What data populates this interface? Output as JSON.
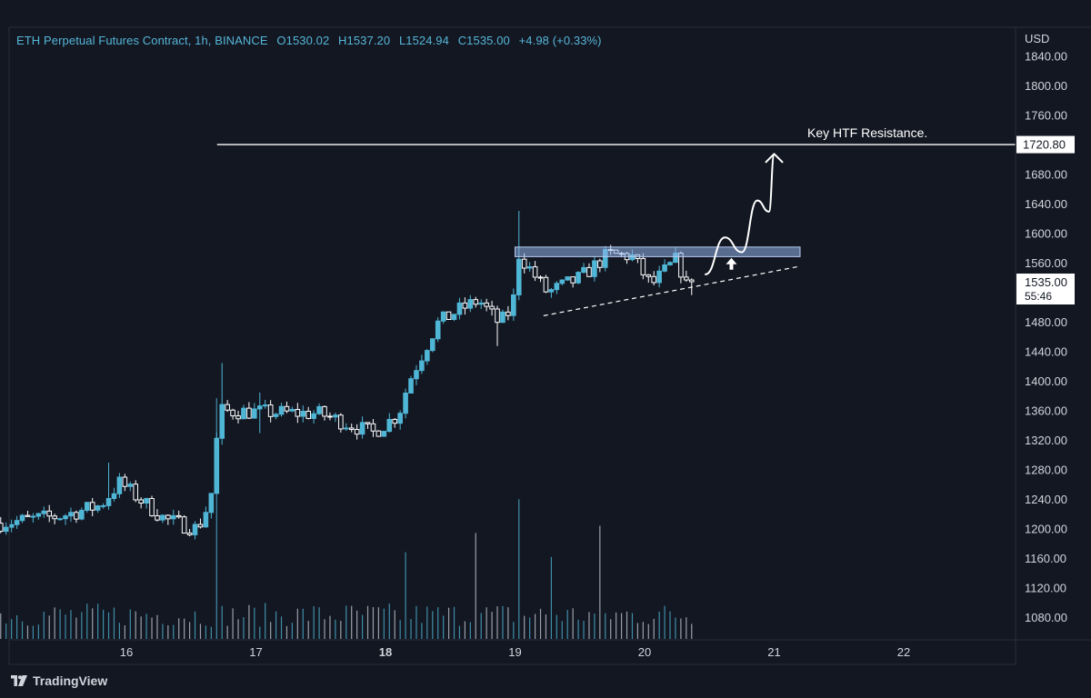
{
  "header": {
    "symbol": "ETH Perpetual Futures Contract, 1h, BINANCE",
    "open": "O1530.02",
    "high": "H1537.20",
    "low": "L1524.94",
    "close": "C1535.00",
    "change": "+4.98 (+0.33%)"
  },
  "branding": {
    "name": "TradingView"
  },
  "annotations": {
    "resistance_label": "Key HTF Resistance.",
    "resistance_price": "1720.80",
    "last_price": "1535.00",
    "countdown": "55:46"
  },
  "colors": {
    "background": "#131722",
    "bull": "#4fb6d6",
    "bear": "#ffffff",
    "zone": "#8fb3ea",
    "header": "#56b6d8"
  },
  "chart_data": {
    "type": "candlestick",
    "symbol": "ETH Perpetual Futures Contract",
    "interval": "1h",
    "exchange": "BINANCE",
    "y_axis": {
      "unit": "USD",
      "range": [
        1050,
        1860
      ],
      "ticks": [
        "1840.00",
        "1800.00",
        "1760.00",
        "1720.00",
        "1680.00",
        "1640.00",
        "1600.00",
        "1560.00",
        "1520.00",
        "1480.00",
        "1440.00",
        "1400.00",
        "1360.00",
        "1320.00",
        "1280.00",
        "1240.00",
        "1200.00",
        "1160.00",
        "1120.00",
        "1080.00"
      ]
    },
    "x_axis": {
      "range_days": [
        15.0,
        22.9
      ],
      "ticks": [
        {
          "label": "16",
          "day": 16
        },
        {
          "label": "17",
          "day": 17
        },
        {
          "label": "18",
          "day": 18,
          "bold": true
        },
        {
          "label": "19",
          "day": 19
        },
        {
          "label": "20",
          "day": 20
        },
        {
          "label": "21",
          "day": 21
        },
        {
          "label": "22",
          "day": 22
        }
      ]
    },
    "resistance_level": 1720.8,
    "resistance_start_day": 16.7,
    "supply_zone": {
      "low": 1569,
      "high": 1582,
      "from_day": 19.0,
      "to_day": 21.2
    },
    "trendline": [
      [
        19.22,
        1489
      ],
      [
        21.2,
        1556
      ]
    ],
    "projection_path": [
      [
        20.47,
        1545
      ],
      [
        20.62,
        1595
      ],
      [
        20.75,
        1575
      ],
      [
        20.87,
        1645
      ],
      [
        20.96,
        1630
      ],
      [
        21.0,
        1707
      ]
    ],
    "up_arrow": {
      "day": 20.67,
      "price": 1560
    },
    "anchors": [
      {
        "day": 15.03,
        "price": 1208
      },
      {
        "day": 15.5,
        "price": 1218
      },
      {
        "day": 15.8,
        "price": 1232
      },
      {
        "day": 15.95,
        "price": 1263
      },
      {
        "day": 16.12,
        "price": 1238
      },
      {
        "day": 16.3,
        "price": 1213
      },
      {
        "day": 16.55,
        "price": 1200
      },
      {
        "day": 16.65,
        "price": 1240
      },
      {
        "day": 16.72,
        "price": 1360
      },
      {
        "day": 17.1,
        "price": 1358
      },
      {
        "day": 17.5,
        "price": 1356
      },
      {
        "day": 17.75,
        "price": 1340
      },
      {
        "day": 17.9,
        "price": 1330
      },
      {
        "day": 18.1,
        "price": 1355
      },
      {
        "day": 18.18,
        "price": 1400
      },
      {
        "day": 18.4,
        "price": 1478
      },
      {
        "day": 18.55,
        "price": 1495
      },
      {
        "day": 18.72,
        "price": 1510
      },
      {
        "day": 18.88,
        "price": 1478
      },
      {
        "day": 18.98,
        "price": 1500
      },
      {
        "day": 19.03,
        "price": 1572
      },
      {
        "day": 19.25,
        "price": 1520
      },
      {
        "day": 19.5,
        "price": 1540
      },
      {
        "day": 19.72,
        "price": 1572
      },
      {
        "day": 19.9,
        "price": 1570
      },
      {
        "day": 20.05,
        "price": 1530
      },
      {
        "day": 20.25,
        "price": 1566
      },
      {
        "day": 20.33,
        "price": 1525
      },
      {
        "day": 20.4,
        "price": 1535
      }
    ],
    "spikes": [
      {
        "day": 16.72,
        "high": 1425,
        "low": 1330
      },
      {
        "day": 19.03,
        "high": 1631,
        "low": 1520
      },
      {
        "day": 18.86,
        "high": 1480,
        "low": 1448
      },
      {
        "day": 17.05,
        "high": 1385,
        "low": 1330
      },
      {
        "day": 15.85,
        "high": 1290,
        "low": 1230
      }
    ],
    "volume_spikes": [
      {
        "day": 16.7,
        "v": 1
      },
      {
        "day": 19.02,
        "v": 0.58
      },
      {
        "day": 18.68,
        "v": 0.44
      },
      {
        "day": 19.67,
        "v": 0.47
      },
      {
        "day": 18.15,
        "v": 0.36
      },
      {
        "day": 19.3,
        "v": 0.34
      }
    ]
  }
}
